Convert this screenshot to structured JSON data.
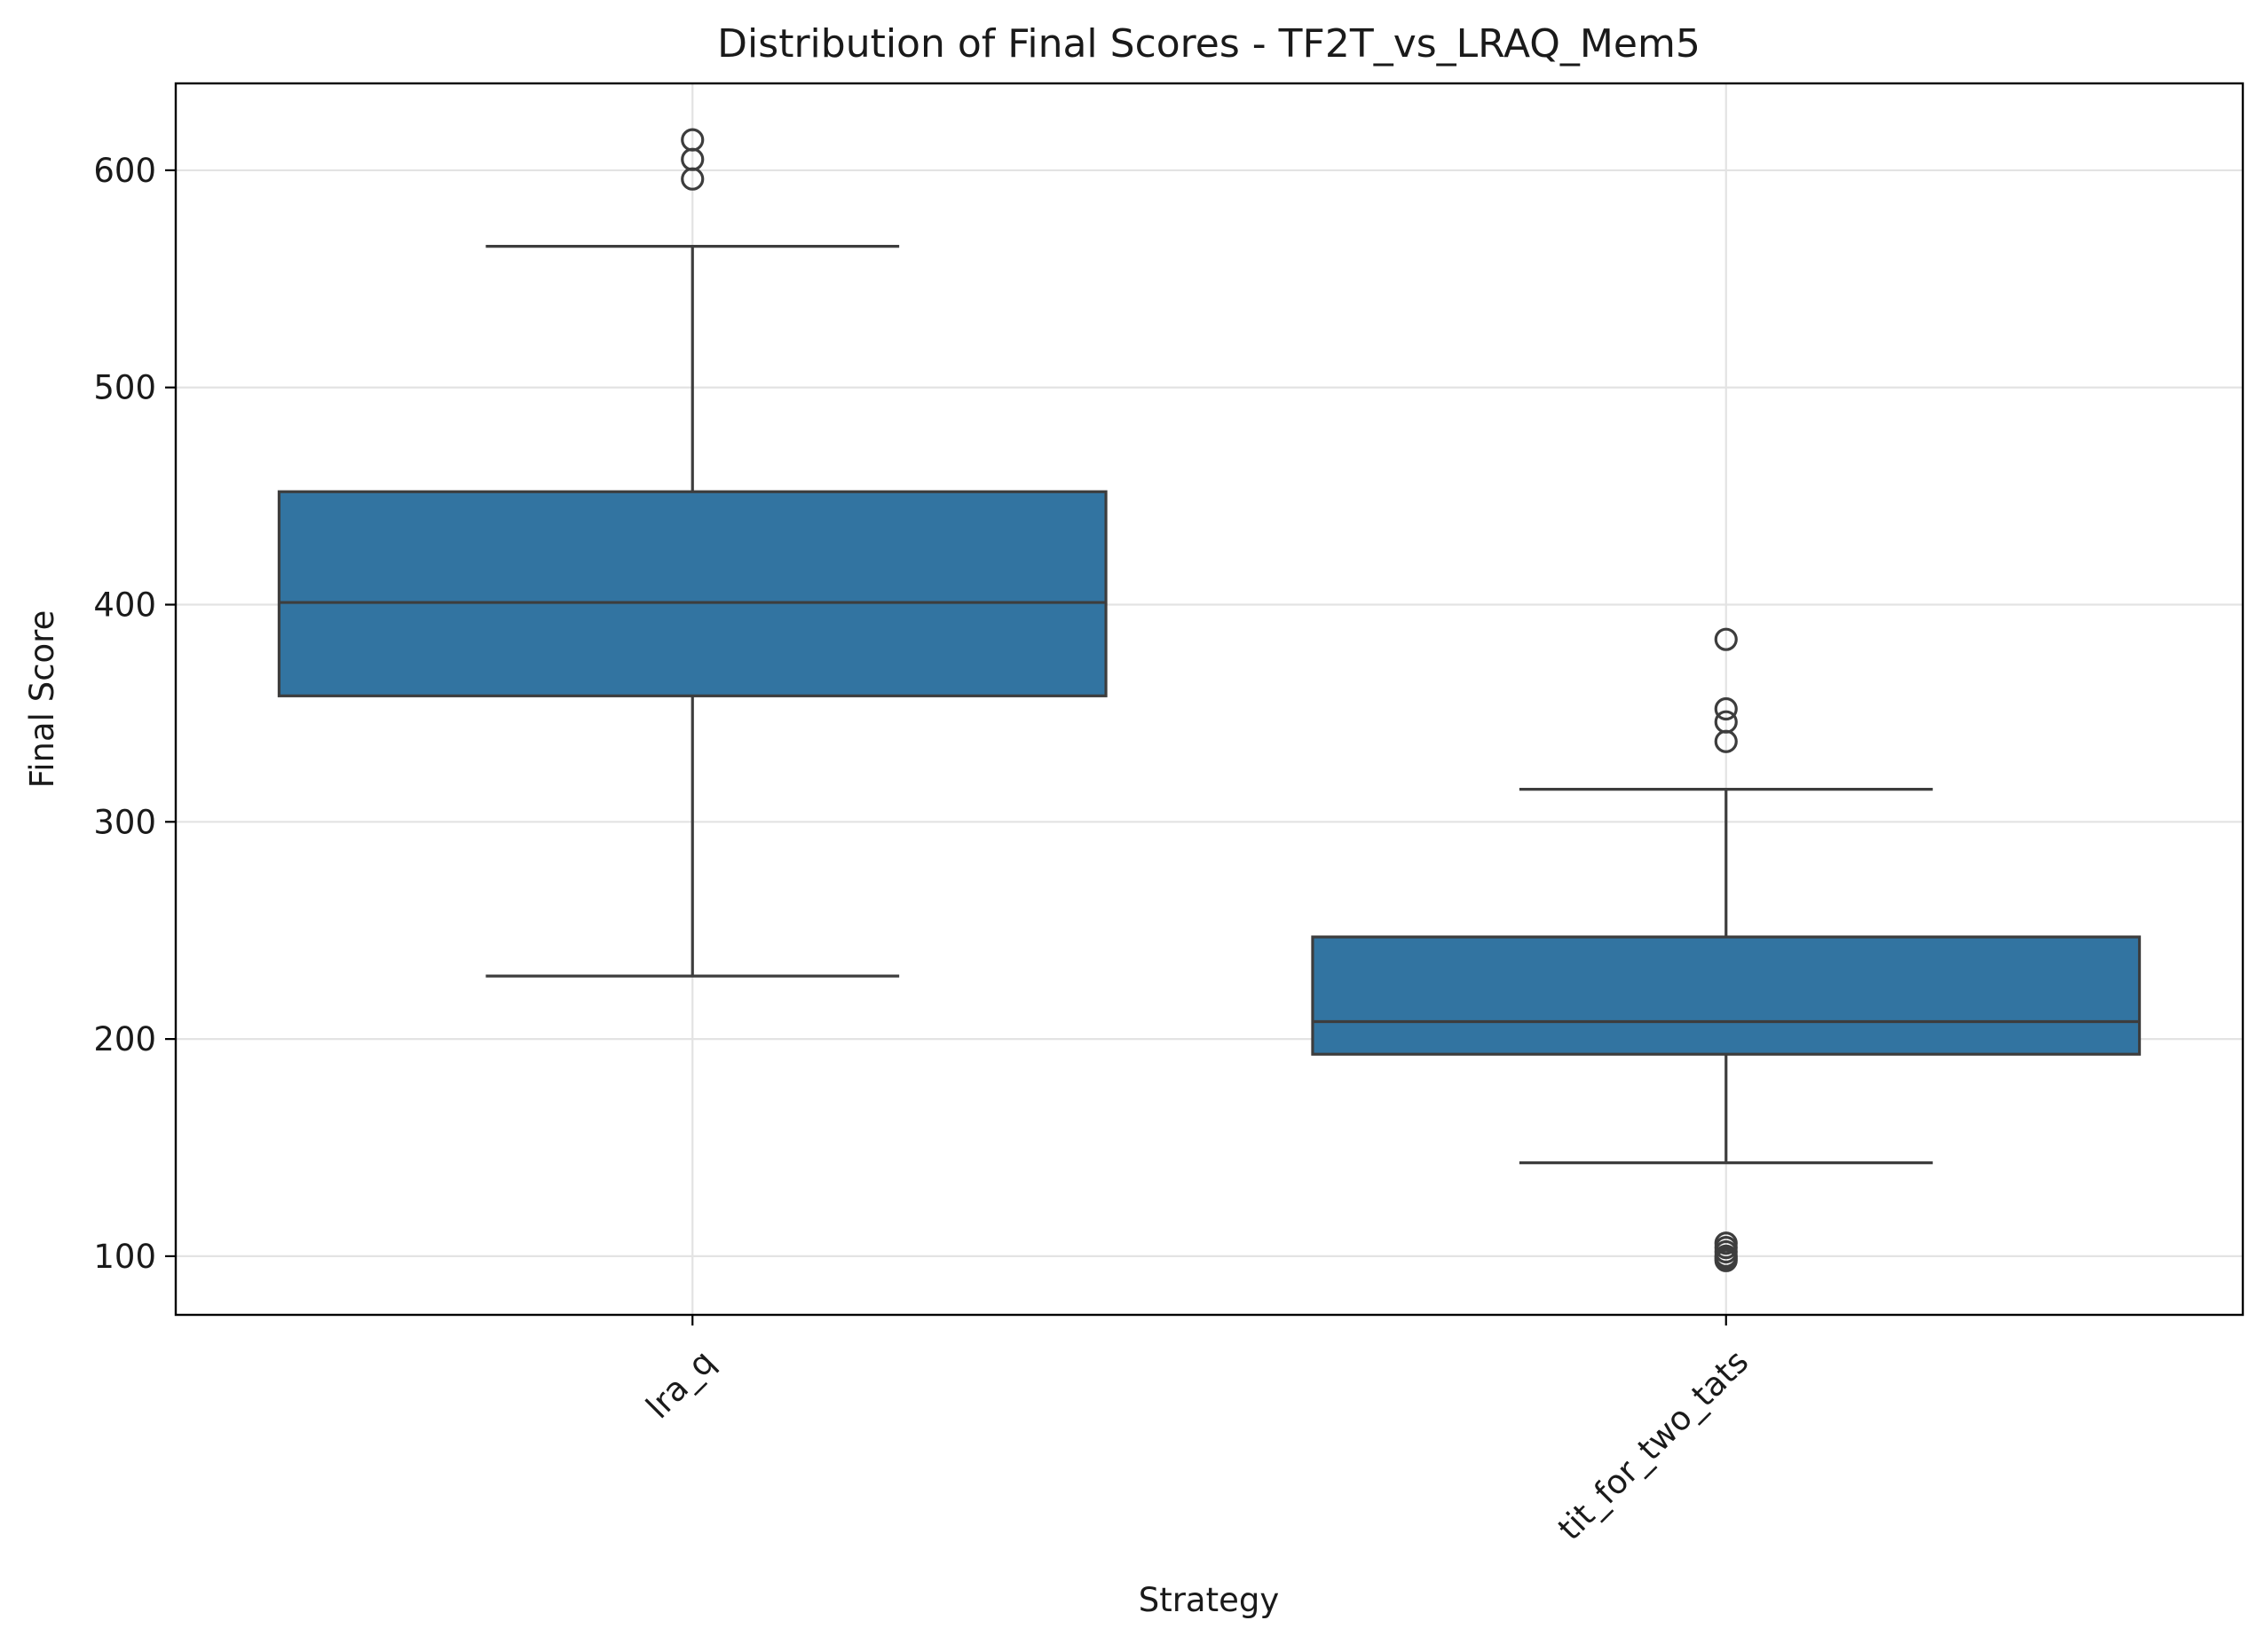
{
  "chart_data": {
    "type": "box",
    "title": "Distribution of Final Scores - TF2T_vs_LRAQ_Mem5",
    "xlabel": "Strategy",
    "ylabel": "Final Score",
    "ylim": [
      73,
      640
    ],
    "yticks": [
      100,
      200,
      300,
      400,
      500,
      600
    ],
    "grid": true,
    "box_color": "#3274a1",
    "line_color": "#3d3d3d",
    "categories": [
      "lra_q",
      "tit_for_two_tats"
    ],
    "boxes": [
      {
        "category": "lra_q",
        "whisker_low": 229,
        "q1": 358,
        "median": 401,
        "q3": 452,
        "whisker_high": 565,
        "outliers": [
          596,
          605,
          614
        ]
      },
      {
        "category": "tit_for_two_tats",
        "whisker_low": 143,
        "q1": 193,
        "median": 208,
        "q3": 247,
        "whisker_high": 315,
        "outliers": [
          384,
          352,
          346,
          337,
          106,
          104,
          102,
          100,
          99,
          98
        ]
      }
    ]
  }
}
